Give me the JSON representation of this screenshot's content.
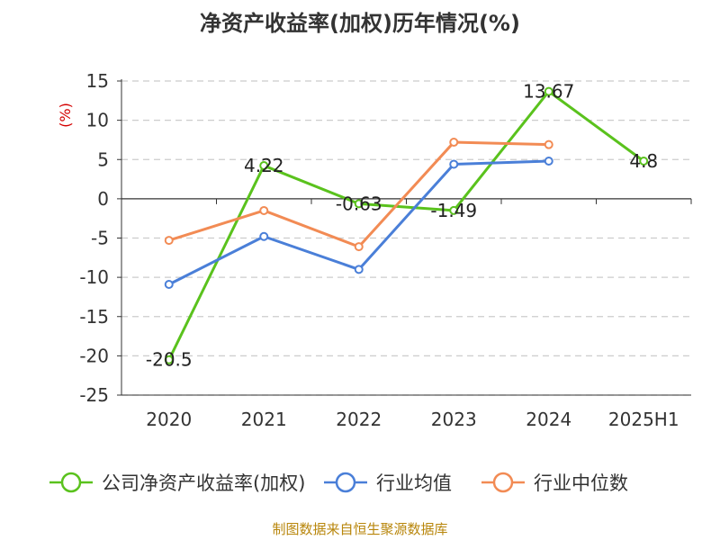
{
  "chart_data": {
    "type": "line",
    "title": "净资产收益率(加权)历年情况(%)",
    "ylabel": "(%)",
    "categories": [
      "2020",
      "2021",
      "2022",
      "2023",
      "2024",
      "2025H1"
    ],
    "yticks": [
      "15",
      "10",
      "5",
      "0",
      "-5",
      "-10",
      "-15",
      "-20",
      "-25"
    ],
    "ylim": [
      -25,
      15
    ],
    "grid": true,
    "legend_position": "bottom",
    "series": [
      {
        "name": "公司净资产收益率(加权)",
        "color": "#5ac21d",
        "values": [
          -20.5,
          4.22,
          -0.63,
          -1.49,
          13.67,
          4.8
        ],
        "labels": [
          "-20.5",
          "4.22",
          "-0.63",
          "-1.49",
          "13.67",
          "4.8"
        ]
      },
      {
        "name": "行业均值",
        "color": "#4a7fd8",
        "values": [
          -10.9,
          -4.8,
          -9.0,
          4.4,
          4.8,
          null
        ]
      },
      {
        "name": "行业中位数",
        "color": "#f28b54",
        "values": [
          -5.3,
          -1.5,
          -6.1,
          7.2,
          6.9,
          null
        ]
      }
    ]
  },
  "source": "制图数据来自恒生聚源数据库"
}
